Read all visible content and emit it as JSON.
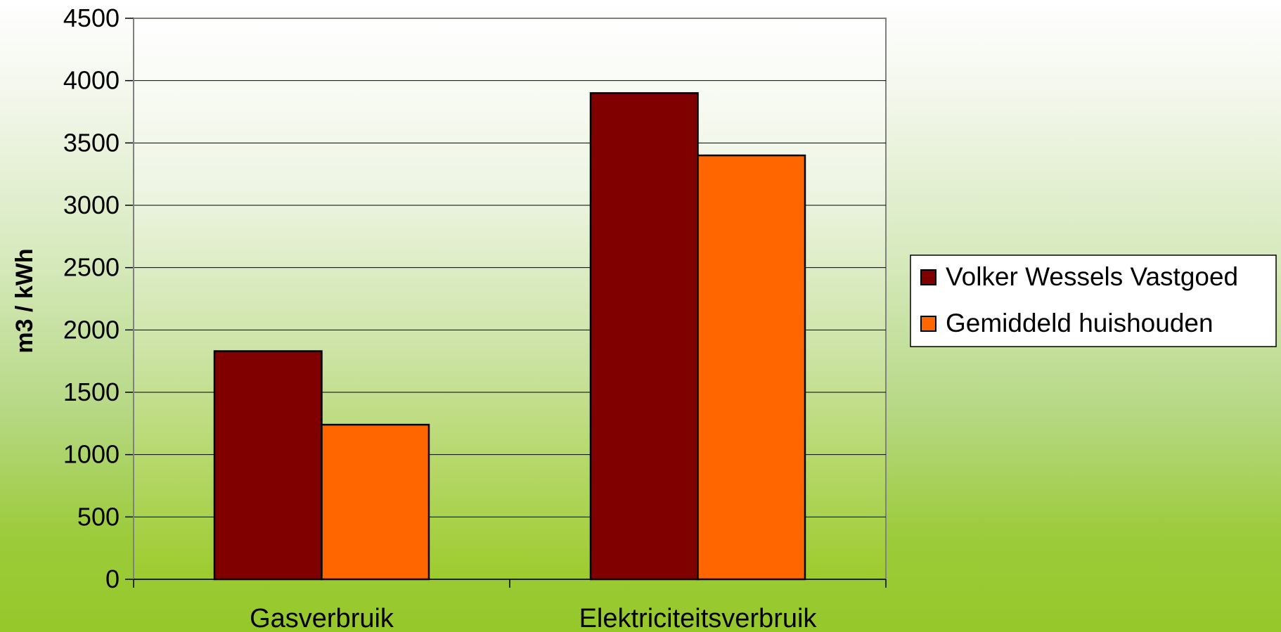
{
  "chart_data": {
    "type": "bar",
    "title": "",
    "xlabel": "",
    "ylabel": "m3 / kWh",
    "categories": [
      "Gasverbruik",
      "Elektriciteitsverbruik"
    ],
    "series": [
      {
        "name": "Volker Wessels Vastgoed",
        "values": [
          1830,
          3900
        ],
        "color": "#800000"
      },
      {
        "name": "Gemiddeld huishouden",
        "values": [
          1240,
          3400
        ],
        "color": "#ff6600"
      }
    ],
    "ylim": [
      0,
      4500
    ],
    "yticks": [
      0,
      500,
      1000,
      1500,
      2000,
      2500,
      3000,
      3500,
      4000,
      4500
    ],
    "grid": true,
    "legend_position": "right"
  }
}
